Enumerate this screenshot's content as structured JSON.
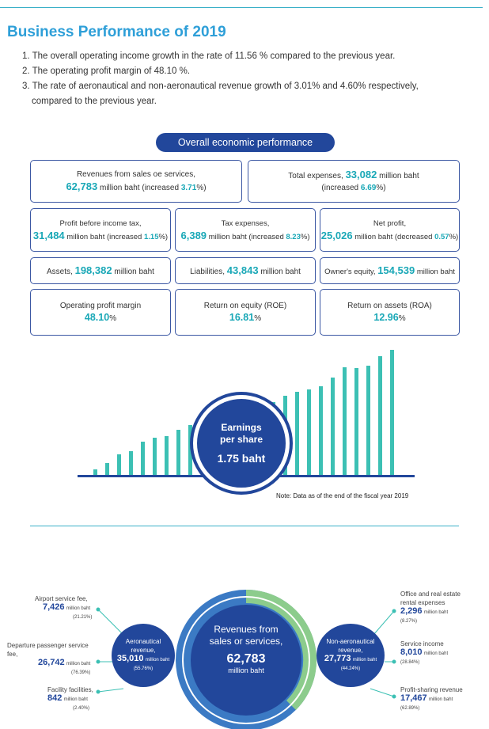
{
  "title": "Business Performance of 2019",
  "points": [
    "1. The overall operating income growth in the rate of 11.56 % compared to the previous year.",
    "2. The operating profit margin of 48.10 %.",
    "3. The rate of aeronautical and non-aeronautical revenue growth of 3.01% and 4.60% respectively,",
    "compared to the previous year."
  ],
  "pill": "Overall economic performance",
  "boxes": {
    "revenues": {
      "label": "Revenues from sales oe services,",
      "value": "62,783",
      "mid": "million baht (increased",
      "pct": "3.71",
      "end": "%)"
    },
    "expenses": {
      "label": "Total expenses,",
      "value": "33,082",
      "mid": "million baht",
      "pre": "(increased",
      "pct": "6.69",
      "end": "%)"
    },
    "pbt": {
      "label": "Profit before income tax,",
      "value": "31,484",
      "mid": "million baht (increased",
      "pct": "1.15",
      "end": "%)"
    },
    "tax": {
      "label": "Tax expenses,",
      "value": "6,389",
      "mid": "million baht (increased",
      "pct": "8.23",
      "end": "%)"
    },
    "net": {
      "label": "Net profit,",
      "value": "25,026",
      "mid": "million baht (decreased",
      "pct": "0.57",
      "end": "%)"
    },
    "assets": {
      "label": "Assets,",
      "value": "198,382",
      "unit": "million baht"
    },
    "liab": {
      "label": "Liabilities,",
      "value": "43,843",
      "unit": "million baht"
    },
    "equity": {
      "label": "Owner's equity,",
      "value": "154,539",
      "unit": "million baht"
    },
    "opm": {
      "label": "Operating profit margin",
      "value": "48.10",
      "unit": "%"
    },
    "roe": {
      "label": "Return on equity (ROE)",
      "value": "16.81",
      "unit": "%"
    },
    "roa": {
      "label": "Return on assets (ROA)",
      "value": "12.96",
      "unit": "%"
    }
  },
  "eps": {
    "line1": "Earnings",
    "line2": "per share",
    "value": "1.75 baht"
  },
  "note": "Note: Data as of the end of the fiscal year 2019",
  "revenue": {
    "center": {
      "line1": "Revenues from",
      "line2": "sales or services,",
      "value": "62,783",
      "unit": "million baht"
    },
    "aero": {
      "line1": "Aeronautical",
      "line2": "revenue,",
      "value": "35,010",
      "unit": "million baht",
      "pct": "(55.76%)"
    },
    "nonaero": {
      "line1": "Non-aeronautical",
      "line2": "revenue,",
      "value": "27,773",
      "unit": "million baht",
      "pct": "(44.24%)"
    },
    "airport_fee": {
      "label": "Airport service fee,",
      "value": "7,426",
      "unit": "million baht",
      "pct": "(21.21%)"
    },
    "departure_fee": {
      "label": "Departure passenger service fee,",
      "value": "26,742",
      "unit": "million baht",
      "pct": "(76.39%)"
    },
    "facility": {
      "label": "Facility facilities,",
      "value": "842",
      "unit": "million baht",
      "pct": "(2.40%)"
    },
    "office": {
      "label1": "Office and real estate",
      "label2": "rental expenses",
      "value": "2,296",
      "unit": "million baht",
      "pct": "(8.27%)"
    },
    "service": {
      "label": "Service income",
      "value": "8,010",
      "unit": "million baht",
      "pct": "(28.84%)"
    },
    "profit_sharing": {
      "label": "Profit-sharing revenue",
      "value": "17,467",
      "unit": "million baht",
      "pct": "(62.89%)"
    }
  },
  "colors": {
    "navy": "#22479b",
    "teal": "#3cc0b4",
    "cyan": "#2e9fd8",
    "green": "#8ccc8c"
  }
}
